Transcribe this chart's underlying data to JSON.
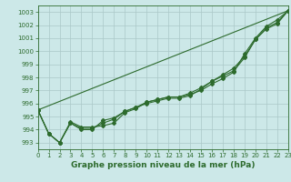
{
  "background_color": "#cce8e8",
  "grid_color": "#aac8c8",
  "line_color": "#2d6b2d",
  "title": "Graphe pression niveau de la mer (hPa)",
  "xlim": [
    0,
    23
  ],
  "ylim_min": 992.5,
  "ylim_max": 1003.5,
  "yticks": [
    993,
    994,
    995,
    996,
    997,
    998,
    999,
    1000,
    1001,
    1002,
    1003
  ],
  "xticks": [
    0,
    1,
    2,
    3,
    4,
    5,
    6,
    7,
    8,
    9,
    10,
    11,
    12,
    13,
    14,
    15,
    16,
    17,
    18,
    19,
    20,
    21,
    22,
    23
  ],
  "series": [
    {
      "x": [
        0,
        1,
        2,
        3,
        4,
        5,
        6,
        7,
        8,
        9,
        10,
        11,
        12,
        13,
        14,
        15,
        16,
        17,
        18,
        19,
        20,
        21,
        22,
        23
      ],
      "y": [
        995.5,
        993.7,
        993.0,
        994.6,
        994.2,
        994.2,
        994.3,
        994.5,
        995.3,
        995.6,
        996.1,
        996.3,
        996.5,
        996.5,
        996.7,
        997.0,
        997.5,
        997.9,
        998.4,
        999.8,
        1001.0,
        1001.9,
        1002.4,
        1003.1
      ],
      "marker": "D",
      "markersize": 2.0,
      "linewidth": 0.8
    },
    {
      "x": [
        0,
        1,
        2,
        3,
        4,
        5,
        6,
        7,
        8,
        9,
        10,
        11,
        12,
        13,
        14,
        15,
        16,
        17,
        18,
        19,
        20,
        21,
        22,
        23
      ],
      "y": [
        995.5,
        993.7,
        993.0,
        994.5,
        994.0,
        994.0,
        994.7,
        994.9,
        995.4,
        995.7,
        996.0,
        996.2,
        996.4,
        996.4,
        996.6,
        997.1,
        997.7,
        998.1,
        998.5,
        999.5,
        1000.9,
        1001.7,
        1002.1,
        1003.1
      ],
      "marker": "P",
      "markersize": 2.5,
      "linewidth": 0.8
    },
    {
      "x": [
        0,
        1,
        2,
        3,
        4,
        5,
        6,
        7,
        8,
        9,
        10,
        11,
        12,
        13,
        14,
        15,
        16,
        17,
        18,
        19,
        20,
        21,
        22,
        23
      ],
      "y": [
        995.5,
        993.7,
        993.0,
        994.5,
        994.1,
        994.1,
        994.5,
        994.8,
        995.4,
        995.7,
        996.1,
        996.3,
        996.5,
        996.5,
        996.8,
        997.2,
        997.7,
        998.2,
        998.7,
        999.6,
        1000.9,
        1001.8,
        1002.2,
        1003.1
      ],
      "marker": "D",
      "markersize": 2.0,
      "linewidth": 0.8
    },
    {
      "x": [
        0,
        23
      ],
      "y": [
        995.5,
        1003.1
      ],
      "marker": null,
      "markersize": 0,
      "linewidth": 0.8
    }
  ],
  "title_fontsize": 6.5,
  "tick_fontsize": 5.0
}
